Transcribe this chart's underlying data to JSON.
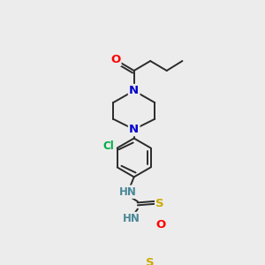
{
  "bg_color": "#ececec",
  "bond_color": "#2a2a2a",
  "bond_width": 1.4,
  "atom_colors": {
    "O": "#ff0000",
    "N": "#0000cc",
    "S": "#ccaa00",
    "Cl": "#00aa44",
    "C": "#2a2a2a",
    "NH": "#4a8899"
  },
  "font_size": 8.5,
  "figsize": [
    3.0,
    3.0
  ],
  "dpi": 100
}
